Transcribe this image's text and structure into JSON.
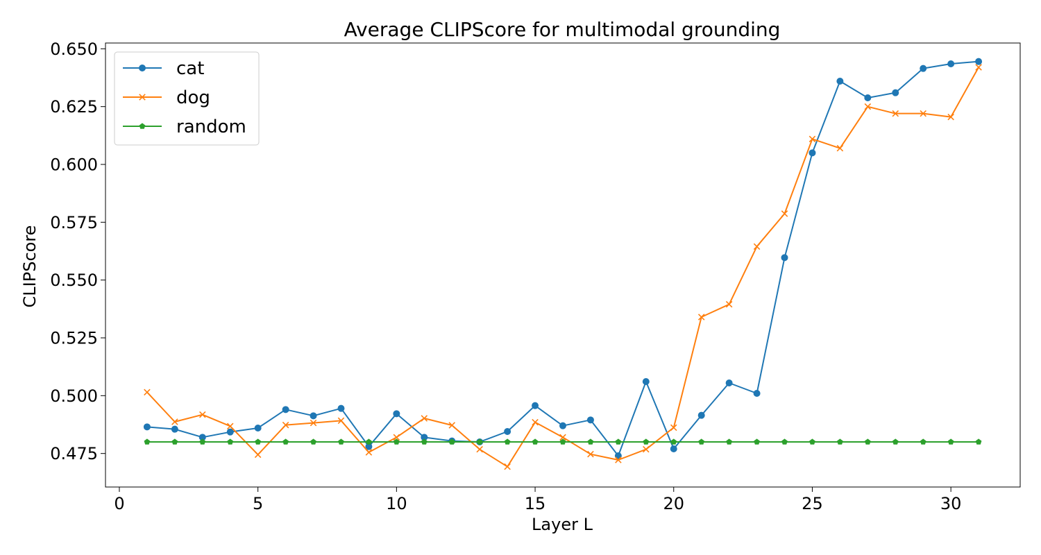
{
  "chart_data": {
    "type": "line",
    "title": "Average CLIPScore for multimodal grounding",
    "xlabel": "Layer L",
    "ylabel": "CLIPScore",
    "xlim": [
      -0.5,
      32.5
    ],
    "ylim": [
      0.4605,
      0.6525
    ],
    "xticks": [
      0,
      5,
      10,
      15,
      20,
      25,
      30
    ],
    "yticks": [
      0.475,
      0.5,
      0.525,
      0.55,
      0.575,
      0.6,
      0.625,
      0.65
    ],
    "xtick_labels": [
      "0",
      "5",
      "10",
      "15",
      "20",
      "25",
      "30"
    ],
    "ytick_labels": [
      "0.475",
      "0.500",
      "0.525",
      "0.550",
      "0.575",
      "0.600",
      "0.625",
      "0.650"
    ],
    "grid": false,
    "legend_position": "top-left",
    "x": [
      1,
      2,
      3,
      4,
      5,
      6,
      7,
      8,
      9,
      10,
      11,
      12,
      13,
      14,
      15,
      16,
      17,
      18,
      19,
      20,
      21,
      22,
      23,
      24,
      25,
      26,
      27,
      28,
      29,
      30,
      31
    ],
    "series": [
      {
        "name": "cat",
        "color": "#1f77b4",
        "marker": "circle",
        "values": [
          0.4865,
          0.4855,
          0.482,
          0.4843,
          0.486,
          0.494,
          0.4913,
          0.4945,
          0.478,
          0.4922,
          0.482,
          0.4804,
          0.48,
          0.4845,
          0.4957,
          0.487,
          0.4895,
          0.474,
          0.5061,
          0.477,
          0.4915,
          0.5055,
          0.501,
          0.5597,
          0.605,
          0.636,
          0.6288,
          0.631,
          0.6415,
          0.6435,
          0.6445
        ]
      },
      {
        "name": "dog",
        "color": "#ff7f0e",
        "marker": "x",
        "values": [
          0.5015,
          0.4887,
          0.4918,
          0.4868,
          0.4745,
          0.4873,
          0.4882,
          0.4892,
          0.4755,
          0.482,
          0.4902,
          0.4872,
          0.4768,
          0.4693,
          0.4885,
          0.482,
          0.4747,
          0.4722,
          0.4768,
          0.4862,
          0.534,
          0.5395,
          0.5645,
          0.5787,
          0.611,
          0.607,
          0.625,
          0.622,
          0.622,
          0.6205,
          0.642
        ]
      },
      {
        "name": "random",
        "color": "#2ca02c",
        "marker": "pentagon",
        "values": [
          0.48,
          0.48,
          0.48,
          0.48,
          0.48,
          0.48,
          0.48,
          0.48,
          0.48,
          0.48,
          0.48,
          0.48,
          0.48,
          0.48,
          0.48,
          0.48,
          0.48,
          0.48,
          0.48,
          0.48,
          0.48,
          0.48,
          0.48,
          0.48,
          0.48,
          0.48,
          0.48,
          0.48,
          0.48,
          0.48,
          0.48
        ]
      }
    ]
  }
}
